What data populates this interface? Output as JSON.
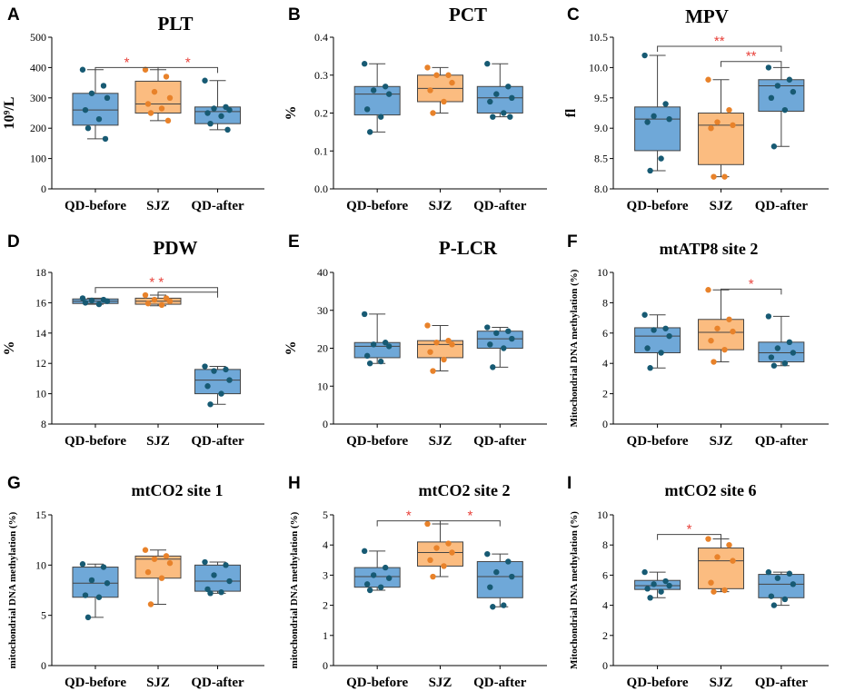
{
  "chart_data": [
    {
      "panel": "A",
      "type": "box",
      "title": "PLT",
      "ylabel": "10⁹/L",
      "ylim": [
        0,
        500
      ],
      "ticks": [
        0,
        100,
        200,
        300,
        400,
        500
      ],
      "categories": [
        "QD-before",
        "SJZ",
        "QD-after"
      ],
      "boxes": [
        {
          "min": 165,
          "q1": 210,
          "median": 260,
          "q3": 315,
          "max": 393
        },
        {
          "min": 225,
          "q1": 250,
          "median": 280,
          "q3": 355,
          "max": 393
        },
        {
          "min": 195,
          "q1": 215,
          "median": 255,
          "q3": 270,
          "max": 357
        }
      ],
      "points": [
        [
          393,
          340,
          315,
          300,
          260,
          230,
          200,
          165
        ],
        [
          393,
          370,
          320,
          300,
          280,
          265,
          250,
          225
        ],
        [
          357,
          270,
          265,
          260,
          250,
          240,
          215,
          195
        ]
      ],
      "sig": [
        {
          "from": 0,
          "to": 1,
          "level": 400,
          "label": "*"
        },
        {
          "from": 1,
          "to": 2,
          "level": 400,
          "label": "*"
        }
      ]
    },
    {
      "panel": "B",
      "type": "box",
      "title": "PCT",
      "ylabel": "%",
      "ylim": [
        0,
        0.4
      ],
      "ticks": [
        "0.0",
        "0.1",
        "0.2",
        "0.3",
        "0.4"
      ],
      "categories": [
        "QD-before",
        "SJZ",
        "QD-after"
      ],
      "boxes": [
        {
          "min": 0.15,
          "q1": 0.195,
          "median": 0.25,
          "q3": 0.27,
          "max": 0.33
        },
        {
          "min": 0.2,
          "q1": 0.23,
          "median": 0.265,
          "q3": 0.3,
          "max": 0.32
        },
        {
          "min": 0.19,
          "q1": 0.2,
          "median": 0.24,
          "q3": 0.27,
          "max": 0.33
        }
      ],
      "points": [
        [
          0.33,
          0.27,
          0.26,
          0.25,
          0.21,
          0.19,
          0.15
        ],
        [
          0.32,
          0.3,
          0.3,
          0.28,
          0.26,
          0.23,
          0.2
        ],
        [
          0.33,
          0.27,
          0.25,
          0.24,
          0.23,
          0.2,
          0.19,
          0.19
        ]
      ],
      "sig": []
    },
    {
      "panel": "C",
      "type": "box",
      "title": "MPV",
      "ylabel": "fl",
      "ylim": [
        8.0,
        10.5
      ],
      "ticks": [
        "8.0",
        "8.5",
        "9.0",
        "9.5",
        "10.0",
        "10.5"
      ],
      "categories": [
        "QD-before",
        "SJZ",
        "QD-after"
      ],
      "boxes": [
        {
          "min": 8.3,
          "q1": 8.63,
          "median": 9.15,
          "q3": 9.35,
          "max": 10.2
        },
        {
          "min": 8.2,
          "q1": 8.4,
          "median": 9.05,
          "q3": 9.25,
          "max": 9.8
        },
        {
          "min": 8.7,
          "q1": 9.28,
          "median": 9.7,
          "q3": 9.8,
          "max": 10.0
        }
      ],
      "points": [
        [
          10.2,
          9.4,
          9.2,
          9.15,
          9.1,
          8.5,
          8.3
        ],
        [
          9.8,
          9.3,
          9.1,
          9.05,
          9.0,
          8.2,
          8.2
        ],
        [
          10.0,
          9.8,
          9.7,
          9.6,
          9.5,
          9.3,
          8.7
        ]
      ],
      "sig": [
        {
          "from": 0,
          "to": 2,
          "level": 10.35,
          "label": "**"
        },
        {
          "from": 1,
          "to": 2,
          "level": 10.1,
          "label": "**"
        }
      ]
    },
    {
      "panel": "D",
      "type": "box",
      "title": "PDW",
      "ylabel": "%",
      "ylim": [
        8,
        18
      ],
      "ticks": [
        8,
        10,
        12,
        14,
        16,
        18
      ],
      "categories": [
        "QD-before",
        "SJZ",
        "QD-after"
      ],
      "boxes": [
        {
          "min": 15.9,
          "q1": 15.95,
          "median": 16.1,
          "q3": 16.25,
          "max": 16.3
        },
        {
          "min": 15.8,
          "q1": 15.9,
          "median": 16.1,
          "q3": 16.3,
          "max": 16.5
        },
        {
          "min": 9.3,
          "q1": 10.0,
          "median": 10.9,
          "q3": 11.6,
          "max": 11.8
        }
      ],
      "points": [
        [
          16.3,
          16.2,
          16.15,
          16.1,
          16.0,
          15.9
        ],
        [
          16.5,
          16.3,
          16.2,
          16.1,
          15.95,
          15.85
        ],
        [
          11.8,
          11.6,
          11.5,
          10.9,
          10.5,
          10.0,
          9.3
        ]
      ],
      "sig": [
        {
          "from": 0,
          "to": 2,
          "level": 17.0,
          "label": "* *"
        },
        {
          "from": 1,
          "to": 2,
          "level": 16.7,
          "label": ""
        }
      ]
    },
    {
      "panel": "E",
      "type": "box",
      "title": "P-LCR",
      "ylabel": "%",
      "ylim": [
        0,
        40
      ],
      "ticks": [
        0,
        10,
        20,
        30,
        40
      ],
      "categories": [
        "QD-before",
        "SJZ",
        "QD-after"
      ],
      "boxes": [
        {
          "min": 16,
          "q1": 17.5,
          "median": 20.5,
          "q3": 21.5,
          "max": 29
        },
        {
          "min": 14,
          "q1": 17.5,
          "median": 21,
          "q3": 22,
          "max": 26
        },
        {
          "min": 15,
          "q1": 20,
          "median": 22.5,
          "q3": 24.5,
          "max": 25.5
        }
      ],
      "points": [
        [
          29,
          21.5,
          21,
          20.5,
          18,
          16.5,
          16
        ],
        [
          26,
          22,
          21.5,
          21,
          19,
          17,
          14
        ],
        [
          25.5,
          24.5,
          24,
          22.5,
          21,
          20,
          15
        ]
      ],
      "sig": []
    },
    {
      "panel": "F",
      "type": "box",
      "title": "mtATP8 site 2",
      "ylabel": "Mitochondrial DNA methylation (%)",
      "ylim": [
        0,
        10
      ],
      "ticks": [
        0,
        2,
        4,
        6,
        8,
        10
      ],
      "categories": [
        "QD-before",
        "SJZ",
        "QD-after"
      ],
      "boxes": [
        {
          "min": 3.7,
          "q1": 4.7,
          "median": 5.8,
          "q3": 6.35,
          "max": 7.2
        },
        {
          "min": 4.1,
          "q1": 4.9,
          "median": 6.05,
          "q3": 6.9,
          "max": 8.85
        },
        {
          "min": 3.85,
          "q1": 4.1,
          "median": 4.7,
          "q3": 5.4,
          "max": 7.1
        }
      ],
      "points": [
        [
          7.2,
          6.3,
          6.2,
          5.8,
          5.0,
          4.7,
          3.7
        ],
        [
          8.85,
          6.9,
          6.3,
          6.1,
          5.5,
          4.9,
          4.1
        ],
        [
          7.1,
          5.4,
          5.0,
          4.7,
          4.4,
          4.0,
          3.85
        ]
      ],
      "sig": [
        {
          "from": 1,
          "to": 2,
          "level": 8.9,
          "label": "*"
        }
      ]
    },
    {
      "panel": "G",
      "type": "box",
      "title": "mtCO2 site 1",
      "ylabel": "mitochondrial DNA methylation (%)",
      "ylim": [
        0,
        15
      ],
      "ticks": [
        0,
        5,
        10,
        15
      ],
      "categories": [
        "QD-before",
        "SJZ",
        "QD-after"
      ],
      "boxes": [
        {
          "min": 4.8,
          "q1": 6.8,
          "median": 8.2,
          "q3": 9.8,
          "max": 10.1
        },
        {
          "min": 6.1,
          "q1": 8.7,
          "median": 10.6,
          "q3": 10.9,
          "max": 11.5
        },
        {
          "min": 7.2,
          "q1": 7.4,
          "median": 8.4,
          "q3": 10.0,
          "max": 10.3
        }
      ],
      "points": [
        [
          10.1,
          9.8,
          8.5,
          8.2,
          7.0,
          6.8,
          4.8
        ],
        [
          11.5,
          10.9,
          10.6,
          10.2,
          9.3,
          8.7,
          6.1
        ],
        [
          10.3,
          10.0,
          9.0,
          8.4,
          7.6,
          7.3,
          7.2
        ]
      ],
      "sig": []
    },
    {
      "panel": "H",
      "type": "box",
      "title": "mtCO2 site 2",
      "ylabel": "mitochondrial DNA methylation (%)",
      "ylim": [
        0,
        5
      ],
      "ticks": [
        0,
        1,
        2,
        3,
        4,
        5
      ],
      "categories": [
        "QD-before",
        "SJZ",
        "QD-after"
      ],
      "boxes": [
        {
          "min": 2.5,
          "q1": 2.6,
          "median": 2.95,
          "q3": 3.25,
          "max": 3.8
        },
        {
          "min": 2.95,
          "q1": 3.3,
          "median": 3.75,
          "q3": 4.1,
          "max": 4.7
        },
        {
          "min": 1.95,
          "q1": 2.25,
          "median": 2.95,
          "q3": 3.45,
          "max": 3.7
        }
      ],
      "points": [
        [
          3.8,
          3.25,
          3.0,
          2.9,
          2.7,
          2.6,
          2.5
        ],
        [
          4.7,
          4.05,
          3.9,
          3.75,
          3.5,
          3.3,
          2.95
        ],
        [
          3.7,
          3.45,
          3.1,
          2.95,
          2.6,
          2.0,
          1.95
        ]
      ],
      "sig": [
        {
          "from": 0,
          "to": 1,
          "level": 4.8,
          "label": "*"
        },
        {
          "from": 1,
          "to": 2,
          "level": 4.8,
          "label": "*"
        }
      ]
    },
    {
      "panel": "I",
      "type": "box",
      "title": "mtCO2 site 6",
      "ylabel": "Mitochondrial DNA methylation (%)",
      "ylim": [
        0,
        10
      ],
      "ticks": [
        0,
        2,
        4,
        6,
        8,
        10
      ],
      "categories": [
        "QD-before",
        "SJZ",
        "QD-after"
      ],
      "boxes": [
        {
          "min": 4.5,
          "q1": 5.05,
          "median": 5.3,
          "q3": 5.65,
          "max": 6.2
        },
        {
          "min": 4.9,
          "q1": 5.1,
          "median": 6.95,
          "q3": 7.8,
          "max": 8.4
        },
        {
          "min": 4.0,
          "q1": 4.5,
          "median": 5.4,
          "q3": 6.05,
          "max": 6.2
        }
      ],
      "points": [
        [
          6.2,
          5.6,
          5.4,
          5.3,
          5.1,
          4.9,
          4.5
        ],
        [
          8.4,
          8.0,
          7.2,
          6.95,
          5.5,
          5.0,
          4.9
        ],
        [
          6.2,
          6.1,
          5.8,
          5.4,
          4.6,
          4.4,
          4.0
        ]
      ],
      "sig": [
        {
          "from": 0,
          "to": 1,
          "level": 8.7,
          "label": "*"
        }
      ]
    }
  ],
  "colors": {
    "blue": "#6fa8d8",
    "orange": "#fbbc80",
    "blue_point": "#175a73",
    "orange_point": "#e8822a",
    "sig": "#e8413a"
  }
}
